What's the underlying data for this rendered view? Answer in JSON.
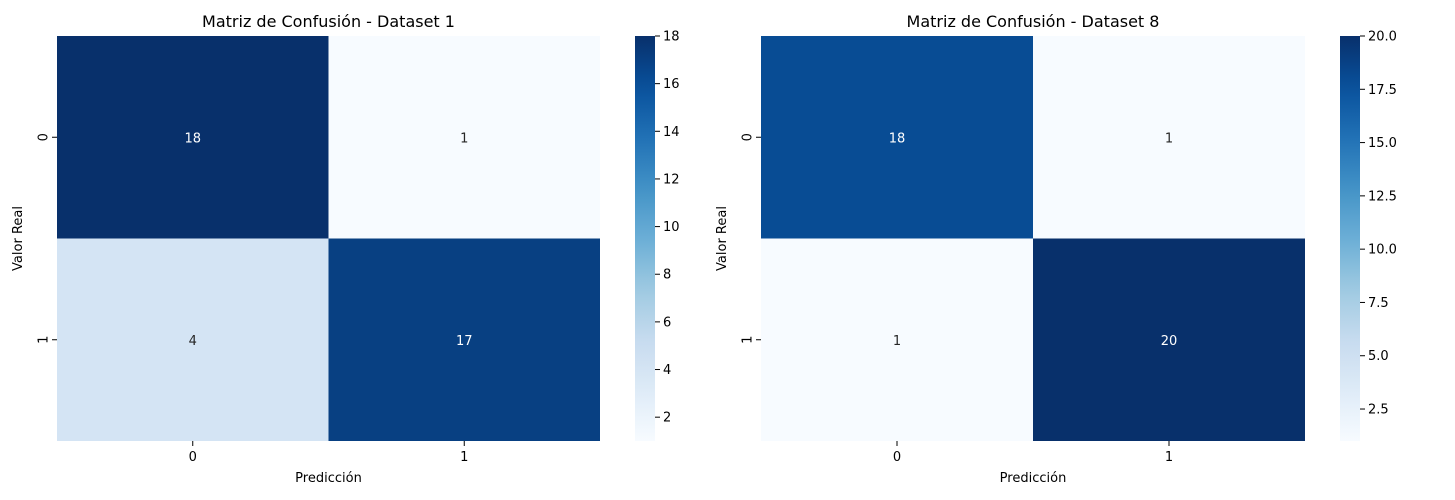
{
  "chart_data": [
    {
      "type": "heatmap",
      "title": "Matriz de Confusión - Dataset 1",
      "xlabel": "Predicción",
      "ylabel": "Valor Real",
      "x_categories": [
        "0",
        "1"
      ],
      "y_categories": [
        "0",
        "1"
      ],
      "values": [
        [
          18,
          1
        ],
        [
          4,
          17
        ]
      ],
      "colormap": "Blues",
      "colorbar": {
        "range": [
          1,
          18
        ],
        "ticks": [
          "2",
          "4",
          "6",
          "8",
          "10",
          "12",
          "14",
          "16",
          "18"
        ]
      }
    },
    {
      "type": "heatmap",
      "title": "Matriz de Confusión - Dataset 8",
      "xlabel": "Predicción",
      "ylabel": "Valor Real",
      "x_categories": [
        "0",
        "1"
      ],
      "y_categories": [
        "0",
        "1"
      ],
      "values": [
        [
          18,
          1
        ],
        [
          1,
          20
        ]
      ],
      "colormap": "Blues",
      "colorbar": {
        "range": [
          1,
          20
        ],
        "ticks": [
          "2.5",
          "5.0",
          "7.5",
          "10.0",
          "12.5",
          "15.0",
          "17.5",
          "20.0"
        ]
      }
    }
  ]
}
